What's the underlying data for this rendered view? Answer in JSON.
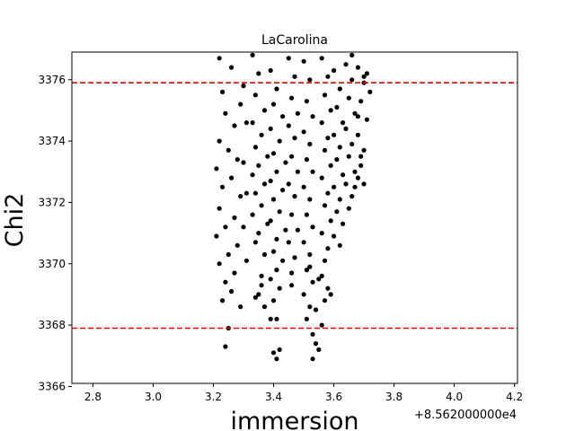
{
  "chart_data": {
    "type": "scatter",
    "title": "LaCarolina",
    "xlabel": "immersion",
    "ylabel": "Chi2",
    "x_offset_label": "+8.562000000e4",
    "xlim": [
      2.73,
      4.21
    ],
    "ylim": [
      3366.1,
      3376.9
    ],
    "xticks": [
      2.8,
      3.0,
      3.2,
      3.4,
      3.6,
      3.8,
      4.0,
      4.2
    ],
    "xtick_labels": [
      "2.8",
      "3.0",
      "3.2",
      "3.4",
      "3.6",
      "3.8",
      "4.0",
      "4.2"
    ],
    "yticks": [
      3366,
      3368,
      3370,
      3372,
      3374,
      3376
    ],
    "ytick_labels": [
      "3366",
      "3368",
      "3370",
      "3372",
      "3374",
      "3376"
    ],
    "hlines": [
      {
        "y": 3375.9,
        "color": "#ff0000",
        "style": "dashed"
      },
      {
        "y": 3367.9,
        "color": "#ff0000",
        "style": "dashed"
      }
    ],
    "marker_color": "#000000",
    "grid": false,
    "series": [
      {
        "values": [
          [
            3.22,
            3376.7
          ],
          [
            3.26,
            3376.4
          ],
          [
            3.23,
            3375.6
          ],
          [
            3.29,
            3375.2
          ],
          [
            3.24,
            3374.9
          ],
          [
            3.27,
            3374.5
          ],
          [
            3.22,
            3374.0
          ],
          [
            3.25,
            3373.7
          ],
          [
            3.28,
            3373.4
          ],
          [
            3.21,
            3373.1
          ],
          [
            3.26,
            3372.8
          ],
          [
            3.23,
            3372.5
          ],
          [
            3.29,
            3372.2
          ],
          [
            3.22,
            3371.8
          ],
          [
            3.27,
            3371.5
          ],
          [
            3.24,
            3371.2
          ],
          [
            3.21,
            3370.9
          ],
          [
            3.28,
            3370.6
          ],
          [
            3.25,
            3370.3
          ],
          [
            3.22,
            3370.0
          ],
          [
            3.27,
            3369.7
          ],
          [
            3.24,
            3369.4
          ],
          [
            3.26,
            3369.1
          ],
          [
            3.23,
            3368.8
          ],
          [
            3.25,
            3367.9
          ],
          [
            3.24,
            3367.3
          ],
          [
            3.3,
            3375.8
          ],
          [
            3.31,
            3374.6
          ],
          [
            3.3,
            3373.3
          ],
          [
            3.31,
            3372.3
          ],
          [
            3.3,
            3371.2
          ],
          [
            3.31,
            3370.1
          ],
          [
            3.29,
            3368.6
          ],
          [
            3.33,
            3376.8
          ],
          [
            3.35,
            3376.2
          ],
          [
            3.34,
            3375.5
          ],
          [
            3.37,
            3375.0
          ],
          [
            3.33,
            3374.6
          ],
          [
            3.36,
            3374.2
          ],
          [
            3.34,
            3373.8
          ],
          [
            3.38,
            3373.5
          ],
          [
            3.35,
            3373.2
          ],
          [
            3.33,
            3372.9
          ],
          [
            3.37,
            3372.6
          ],
          [
            3.34,
            3372.3
          ],
          [
            3.36,
            3371.9
          ],
          [
            3.33,
            3371.6
          ],
          [
            3.38,
            3371.3
          ],
          [
            3.35,
            3371.0
          ],
          [
            3.34,
            3370.7
          ],
          [
            3.37,
            3370.3
          ],
          [
            3.36,
            3369.6
          ],
          [
            3.35,
            3369.0
          ],
          [
            3.37,
            3368.6
          ],
          [
            3.34,
            3368.9
          ],
          [
            3.36,
            3369.3
          ],
          [
            3.39,
            3376.3
          ],
          [
            3.41,
            3375.7
          ],
          [
            3.4,
            3375.2
          ],
          [
            3.43,
            3374.8
          ],
          [
            3.39,
            3374.4
          ],
          [
            3.42,
            3374.0
          ],
          [
            3.4,
            3373.6
          ],
          [
            3.44,
            3373.3
          ],
          [
            3.41,
            3373.0
          ],
          [
            3.39,
            3372.7
          ],
          [
            3.43,
            3372.4
          ],
          [
            3.4,
            3372.1
          ],
          [
            3.42,
            3371.7
          ],
          [
            3.39,
            3371.4
          ],
          [
            3.44,
            3371.1
          ],
          [
            3.41,
            3370.8
          ],
          [
            3.4,
            3370.4
          ],
          [
            3.43,
            3370.1
          ],
          [
            3.41,
            3369.8
          ],
          [
            3.39,
            3369.5
          ],
          [
            3.42,
            3369.2
          ],
          [
            3.4,
            3368.8
          ],
          [
            3.41,
            3368.2
          ],
          [
            3.39,
            3368.2
          ],
          [
            3.4,
            3367.1
          ],
          [
            3.41,
            3366.9
          ],
          [
            3.42,
            3367.2
          ],
          [
            3.45,
            3376.7
          ],
          [
            3.47,
            3376.1
          ],
          [
            3.46,
            3375.4
          ],
          [
            3.48,
            3374.9
          ],
          [
            3.45,
            3374.5
          ],
          [
            3.47,
            3374.1
          ],
          [
            3.46,
            3373.5
          ],
          [
            3.48,
            3373.0
          ],
          [
            3.45,
            3372.6
          ],
          [
            3.47,
            3372.2
          ],
          [
            3.46,
            3371.6
          ],
          [
            3.48,
            3371.1
          ],
          [
            3.45,
            3370.7
          ],
          [
            3.47,
            3370.2
          ],
          [
            3.46,
            3369.7
          ],
          [
            3.46,
            3369.3
          ],
          [
            3.5,
            3376.6
          ],
          [
            3.52,
            3376.0
          ],
          [
            3.51,
            3375.3
          ],
          [
            3.53,
            3374.8
          ],
          [
            3.5,
            3374.3
          ],
          [
            3.52,
            3373.9
          ],
          [
            3.51,
            3373.4
          ],
          [
            3.53,
            3373.0
          ],
          [
            3.5,
            3372.5
          ],
          [
            3.52,
            3372.1
          ],
          [
            3.51,
            3371.6
          ],
          [
            3.53,
            3371.2
          ],
          [
            3.5,
            3370.7
          ],
          [
            3.52,
            3370.3
          ],
          [
            3.51,
            3369.8
          ],
          [
            3.53,
            3369.4
          ],
          [
            3.5,
            3369.0
          ],
          [
            3.52,
            3368.6
          ],
          [
            3.51,
            3368.2
          ],
          [
            3.53,
            3367.7
          ],
          [
            3.54,
            3367.4
          ],
          [
            3.53,
            3366.9
          ],
          [
            3.55,
            3367.2
          ],
          [
            3.54,
            3368.5
          ],
          [
            3.55,
            3369.5
          ],
          [
            3.52,
            3369.9
          ],
          [
            3.56,
            3376.7
          ],
          [
            3.58,
            3376.1
          ],
          [
            3.57,
            3375.5
          ],
          [
            3.59,
            3375.0
          ],
          [
            3.56,
            3374.6
          ],
          [
            3.58,
            3374.1
          ],
          [
            3.57,
            3373.7
          ],
          [
            3.59,
            3373.2
          ],
          [
            3.56,
            3372.8
          ],
          [
            3.58,
            3372.3
          ],
          [
            3.57,
            3371.9
          ],
          [
            3.59,
            3371.4
          ],
          [
            3.56,
            3371.0
          ],
          [
            3.58,
            3370.5
          ],
          [
            3.57,
            3370.1
          ],
          [
            3.56,
            3369.6
          ],
          [
            3.58,
            3369.2
          ],
          [
            3.57,
            3368.8
          ],
          [
            3.59,
            3369.0
          ],
          [
            3.56,
            3368.0
          ],
          [
            3.6,
            3376.3
          ],
          [
            3.62,
            3375.7
          ],
          [
            3.61,
            3375.1
          ],
          [
            3.63,
            3374.6
          ],
          [
            3.6,
            3374.2
          ],
          [
            3.62,
            3373.8
          ],
          [
            3.61,
            3373.4
          ],
          [
            3.63,
            3372.9
          ],
          [
            3.6,
            3372.5
          ],
          [
            3.62,
            3372.1
          ],
          [
            3.61,
            3371.7
          ],
          [
            3.63,
            3371.3
          ],
          [
            3.6,
            3370.9
          ],
          [
            3.62,
            3370.6
          ],
          [
            3.64,
            3376.5
          ],
          [
            3.66,
            3376.0
          ],
          [
            3.65,
            3375.4
          ],
          [
            3.67,
            3374.9
          ],
          [
            3.64,
            3374.4
          ],
          [
            3.66,
            3373.9
          ],
          [
            3.65,
            3373.5
          ],
          [
            3.67,
            3373.0
          ],
          [
            3.64,
            3372.6
          ],
          [
            3.66,
            3372.2
          ],
          [
            3.65,
            3371.8
          ],
          [
            3.67,
            3372.5
          ],
          [
            3.66,
            3376.8
          ],
          [
            3.68,
            3376.4
          ],
          [
            3.7,
            3375.9
          ],
          [
            3.69,
            3375.3
          ],
          [
            3.71,
            3374.7
          ],
          [
            3.68,
            3374.2
          ],
          [
            3.7,
            3373.7
          ],
          [
            3.69,
            3373.2
          ],
          [
            3.68,
            3372.8
          ],
          [
            3.7,
            3372.6
          ],
          [
            3.69,
            3373.5
          ],
          [
            3.71,
            3376.2
          ],
          [
            3.72,
            3375.6
          ],
          [
            3.7,
            3376.1
          ],
          [
            3.68,
            3374.8
          ]
        ]
      }
    ]
  }
}
